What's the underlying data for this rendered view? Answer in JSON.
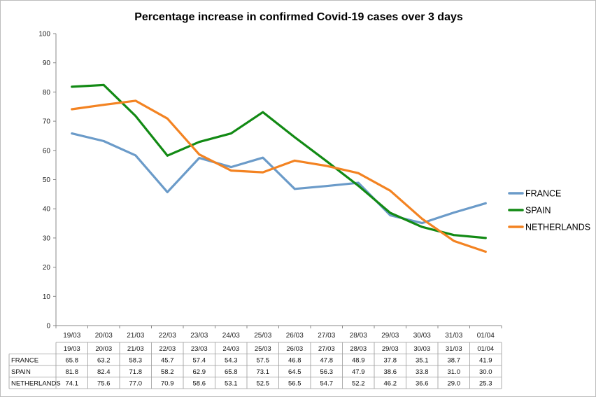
{
  "chart_data": {
    "type": "line",
    "title": "Percentage increase in confirmed Covid-19 cases over 3 days",
    "xlabel": "",
    "ylabel": "",
    "categories": [
      "19/03",
      "20/03",
      "21/03",
      "22/03",
      "23/03",
      "24/03",
      "25/03",
      "26/03",
      "27/03",
      "28/03",
      "29/03",
      "30/03",
      "31/03",
      "01/04"
    ],
    "ylim": [
      0,
      100
    ],
    "yticks": [
      0,
      10,
      20,
      30,
      40,
      50,
      60,
      70,
      80,
      90,
      100
    ],
    "grid": false,
    "legend_position": "right",
    "series": [
      {
        "name": "FRANCE",
        "color": "#6b9bc9",
        "values": [
          65.8,
          63.2,
          58.3,
          45.7,
          57.4,
          54.3,
          57.5,
          46.8,
          47.8,
          48.9,
          37.8,
          35.1,
          38.7,
          41.9
        ]
      },
      {
        "name": "SPAIN",
        "color": "#128a14",
        "values": [
          81.8,
          82.4,
          71.8,
          58.2,
          62.9,
          65.8,
          73.1,
          64.5,
          56.3,
          47.9,
          38.6,
          33.8,
          31.0,
          30.0
        ]
      },
      {
        "name": "NETHERLANDS",
        "color": "#f38322",
        "values": [
          74.1,
          75.6,
          77.0,
          70.9,
          58.6,
          53.1,
          52.5,
          56.5,
          54.7,
          52.2,
          46.2,
          36.6,
          29.0,
          25.3
        ]
      }
    ],
    "table": {
      "headers": [
        "19/03",
        "20/03",
        "21/03",
        "22/03",
        "23/03",
        "24/03",
        "25/03",
        "26/03",
        "27/03",
        "28/03",
        "29/03",
        "30/03",
        "31/03",
        "01/04"
      ],
      "rows": [
        {
          "label": "FRANCE",
          "cells": [
            "65.8",
            "63.2",
            "58.3",
            "45.7",
            "57.4",
            "54.3",
            "57.5",
            "46.8",
            "47.8",
            "48.9",
            "37.8",
            "35.1",
            "38.7",
            "41.9"
          ]
        },
        {
          "label": "SPAIN",
          "cells": [
            "81.8",
            "82.4",
            "71.8",
            "58.2",
            "62.9",
            "65.8",
            "73.1",
            "64.5",
            "56.3",
            "47.9",
            "38.6",
            "33.8",
            "31.0",
            "30.0"
          ]
        },
        {
          "label": "NETHERLANDS",
          "cells": [
            "74.1",
            "75.6",
            "77.0",
            "70.9",
            "58.6",
            "53.1",
            "52.5",
            "56.5",
            "54.7",
            "52.2",
            "46.2",
            "36.6",
            "29.0",
            "25.3"
          ]
        }
      ]
    }
  }
}
